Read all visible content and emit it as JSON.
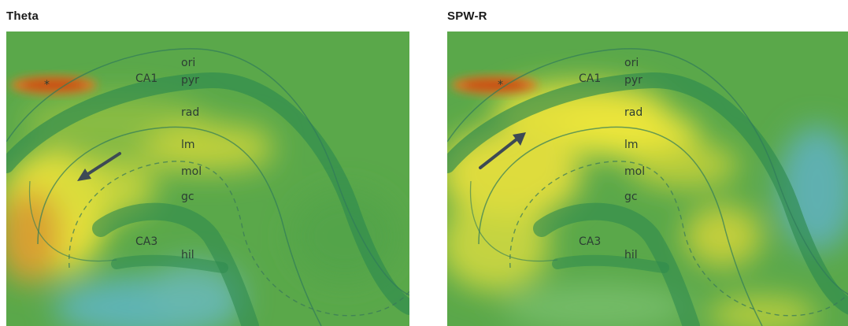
{
  "panels": [
    {
      "title": "Theta",
      "labels": {
        "ori": "ori",
        "pyr": "pyr",
        "rad": "rad",
        "lm": "lm",
        "mol": "mol",
        "gc": "gc",
        "hil": "hil",
        "ca1": "CA1",
        "ca3": "CA3",
        "star": "*"
      },
      "arrow_direction": "down-left"
    },
    {
      "title": "SPW-R",
      "labels": {
        "ori": "ori",
        "pyr": "pyr",
        "rad": "rad",
        "lm": "lm",
        "mol": "mol",
        "gc": "gc",
        "hil": "hil",
        "ca1": "CA1",
        "ca3": "CA3",
        "star": "*"
      },
      "arrow_direction": "up-right"
    }
  ],
  "colors": {
    "background_green": "#5aa84a",
    "hot_yellow": "#e8e23a",
    "hot_orange": "#d0581e",
    "cool_cyan": "#58b4b0",
    "cell_layer": "#2e8a4e",
    "arrow": "#3d4a55"
  }
}
